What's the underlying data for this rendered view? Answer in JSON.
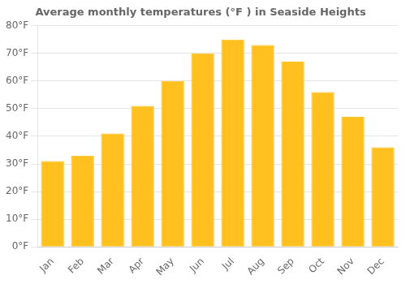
{
  "chart_data": {
    "type": "bar",
    "title": "Average monthly temperatures (°F ) in Seaside Heights",
    "categories": [
      "Jan",
      "Feb",
      "Mar",
      "Apr",
      "May",
      "Jun",
      "Jul",
      "Aug",
      "Sep",
      "Oct",
      "Nov",
      "Dec"
    ],
    "values": [
      31,
      33,
      41,
      51,
      60,
      70,
      75,
      73,
      67,
      56,
      47,
      36
    ],
    "color": "#FFC020",
    "ylim": [
      0,
      80
    ],
    "yticks": [
      {
        "value": 0,
        "label": "0°F"
      },
      {
        "value": 10,
        "label": "10°F"
      },
      {
        "value": 20,
        "label": "20°F"
      },
      {
        "value": 30,
        "label": "30°F"
      },
      {
        "value": 40,
        "label": "40°F"
      },
      {
        "value": 50,
        "label": "50°F"
      },
      {
        "value": 60,
        "label": "60°F"
      },
      {
        "value": 70,
        "label": "70°F"
      },
      {
        "value": 80,
        "label": "80°F"
      }
    ],
    "grid": true
  }
}
